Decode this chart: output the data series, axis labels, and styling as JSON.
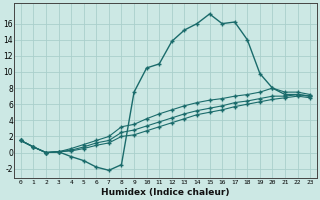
{
  "xlabel": "Humidex (Indice chaleur)",
  "ylabel": "",
  "bg_color": "#cce8e4",
  "line_color": "#1a6b6b",
  "grid_color": "#aacfcc",
  "xlim": [
    -0.5,
    23.5
  ],
  "ylim": [
    -3.2,
    18.5
  ],
  "xticks": [
    0,
    1,
    2,
    3,
    4,
    5,
    6,
    7,
    8,
    9,
    10,
    11,
    12,
    13,
    14,
    15,
    16,
    17,
    18,
    19,
    20,
    21,
    22,
    23
  ],
  "yticks": [
    -2,
    0,
    2,
    4,
    6,
    8,
    10,
    12,
    14,
    16
  ],
  "curve1_x": [
    0,
    1,
    2,
    3,
    4,
    5,
    6,
    7,
    8,
    9,
    10,
    11,
    12,
    13,
    14,
    15,
    16,
    17,
    18,
    19,
    20,
    21,
    22,
    23
  ],
  "curve1_y": [
    1.5,
    0.7,
    0.0,
    0.1,
    -0.5,
    -1.0,
    -1.8,
    -2.2,
    -1.5,
    7.5,
    10.5,
    11.0,
    13.8,
    15.2,
    16.0,
    17.2,
    16.0,
    16.2,
    14.0,
    9.8,
    8.0,
    7.2,
    7.2,
    7.0
  ],
  "curve2_x": [
    0,
    1,
    2,
    3,
    4,
    5,
    6,
    7,
    8,
    9,
    10,
    11,
    12,
    13,
    14,
    15,
    16,
    17,
    18,
    19,
    20,
    21,
    22,
    23
  ],
  "curve2_y": [
    1.5,
    0.7,
    0.0,
    0.1,
    0.5,
    1.0,
    1.5,
    2.0,
    3.2,
    3.5,
    4.2,
    4.8,
    5.3,
    5.8,
    6.2,
    6.5,
    6.7,
    7.0,
    7.2,
    7.5,
    8.0,
    7.5,
    7.5,
    7.2
  ],
  "curve3_x": [
    0,
    1,
    2,
    3,
    4,
    5,
    6,
    7,
    8,
    9,
    10,
    11,
    12,
    13,
    14,
    15,
    16,
    17,
    18,
    19,
    20,
    21,
    22,
    23
  ],
  "curve3_y": [
    1.5,
    0.7,
    0.0,
    0.1,
    0.3,
    0.7,
    1.2,
    1.5,
    2.5,
    2.8,
    3.3,
    3.8,
    4.3,
    4.8,
    5.2,
    5.5,
    5.8,
    6.2,
    6.4,
    6.7,
    7.0,
    7.0,
    7.2,
    7.0
  ],
  "curve4_x": [
    0,
    1,
    2,
    3,
    4,
    5,
    6,
    7,
    8,
    9,
    10,
    11,
    12,
    13,
    14,
    15,
    16,
    17,
    18,
    19,
    20,
    21,
    22,
    23
  ],
  "curve4_y": [
    1.5,
    0.7,
    0.0,
    0.1,
    0.2,
    0.5,
    0.9,
    1.2,
    2.0,
    2.2,
    2.7,
    3.2,
    3.7,
    4.2,
    4.7,
    5.0,
    5.3,
    5.7,
    6.0,
    6.3,
    6.6,
    6.8,
    7.0,
    6.8
  ]
}
